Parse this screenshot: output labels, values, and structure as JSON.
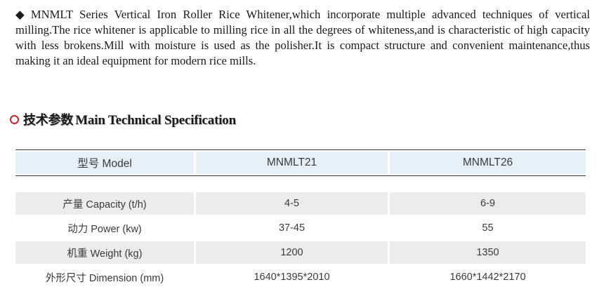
{
  "description": {
    "bullet": "◆",
    "text": "MNMLT Series Vertical Iron Roller Rice Whitener,which incorporate multiple advanced techniques of vertical milling.The rice whitener is applicable to milling rice in all the degrees of whiteness,and is characteristic of high capacity with less brokens.Mill with moisture is used as the polisher.It is compact structure and convenient maintenance,thus making it an ideal equipment for modern rice mills."
  },
  "section": {
    "title_cn": "技术参数",
    "title_en": "Main Technical Specification"
  },
  "table": {
    "header": [
      "型号 Model",
      "MNMLT21",
      "MNMLT26"
    ],
    "rows": [
      [
        "产量 Capacity (t/h)",
        "4-5",
        "6-9"
      ],
      [
        "动力 Power (kw)",
        "37-45",
        "55"
      ],
      [
        "机重 Weight (kg)",
        "1200",
        "1350"
      ],
      [
        "外形尺寸 Dimension (mm)",
        "1640*1395*2010",
        "1660*1442*2170"
      ]
    ]
  },
  "colors": {
    "accent_circle": "#c0282d",
    "header_bg": "#e6f0f7",
    "shaded_row_bg": "#ececec",
    "text": "#1a1a1a"
  }
}
